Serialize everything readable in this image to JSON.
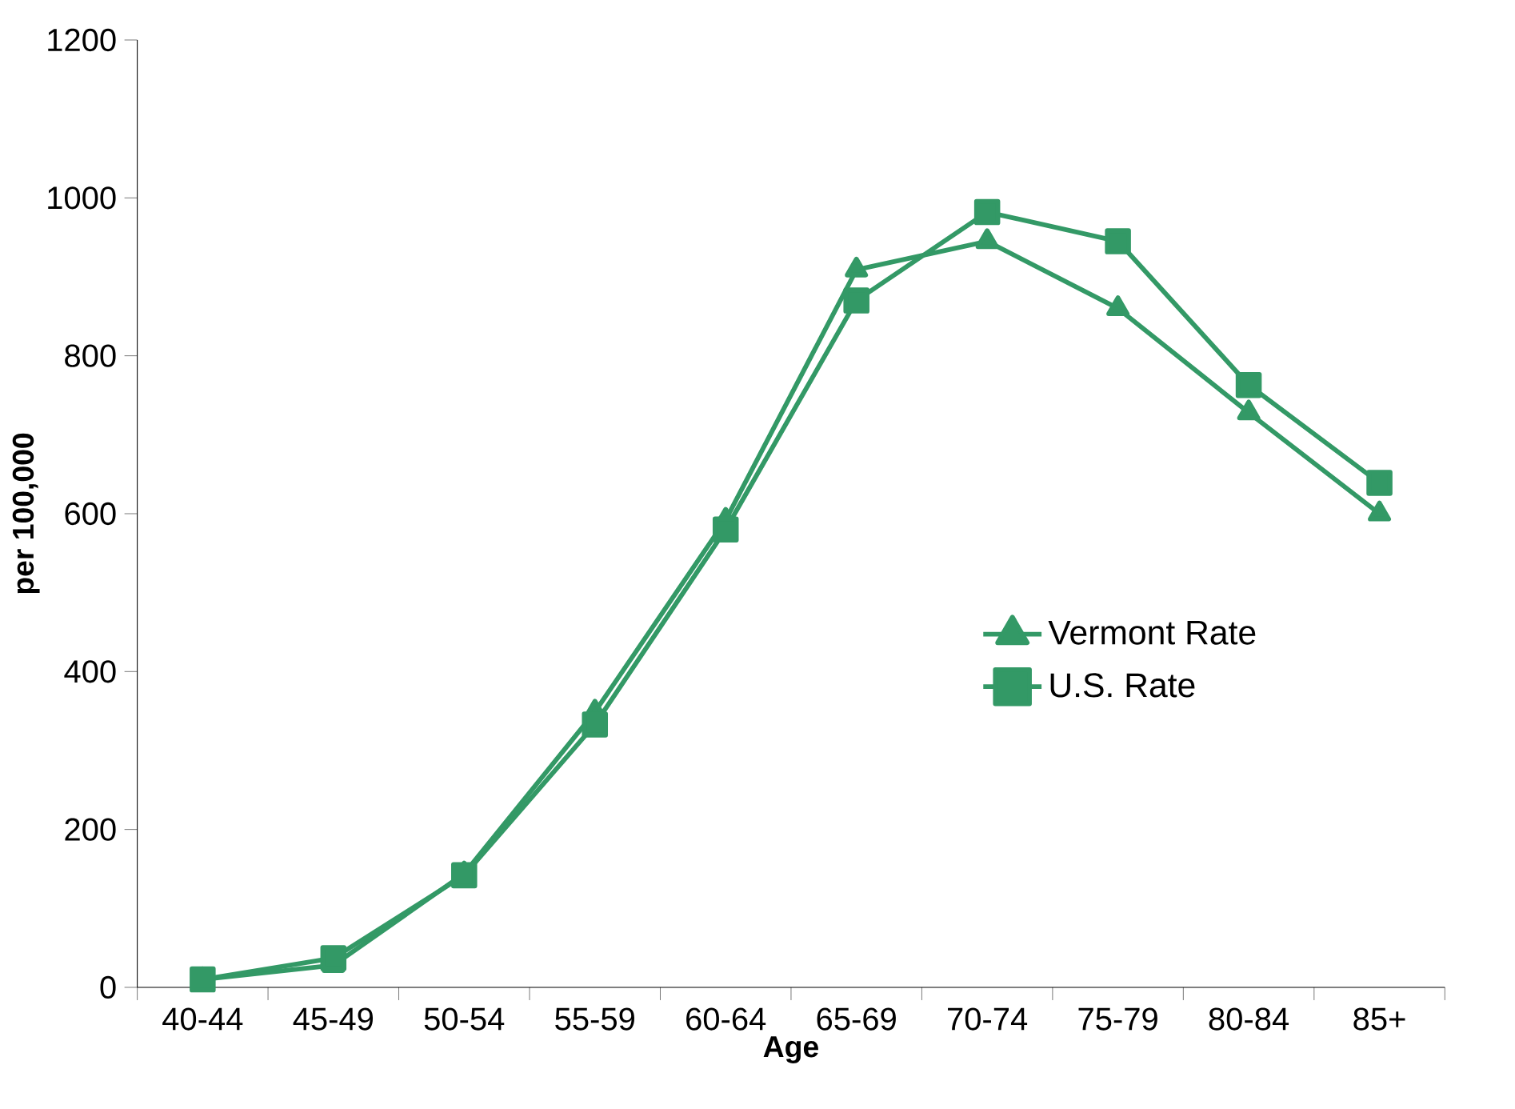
{
  "chart_data": {
    "type": "line",
    "xlabel": "Age",
    "ylabel": "per 100,000",
    "categories": [
      "40-44",
      "45-49",
      "50-54",
      "55-59",
      "60-64",
      "65-69",
      "70-74",
      "75-79",
      "80-84",
      "85+"
    ],
    "series": [
      {
        "name": "Vermont Rate",
        "color": "#339966",
        "marker": "triangle",
        "values": [
          10,
          28,
          144,
          349,
          592,
          909,
          945,
          860,
          728,
          600
        ]
      },
      {
        "name": "U.S. Rate",
        "color": "#339966",
        "marker": "square",
        "values": [
          10,
          37,
          142,
          333,
          580,
          870,
          982,
          945,
          763,
          639
        ]
      }
    ],
    "ylim": [
      0,
      1200
    ],
    "yticks": [
      0,
      200,
      400,
      600,
      800,
      1000,
      1200
    ],
    "grid": false,
    "legend": "right",
    "line_style": "solid"
  }
}
